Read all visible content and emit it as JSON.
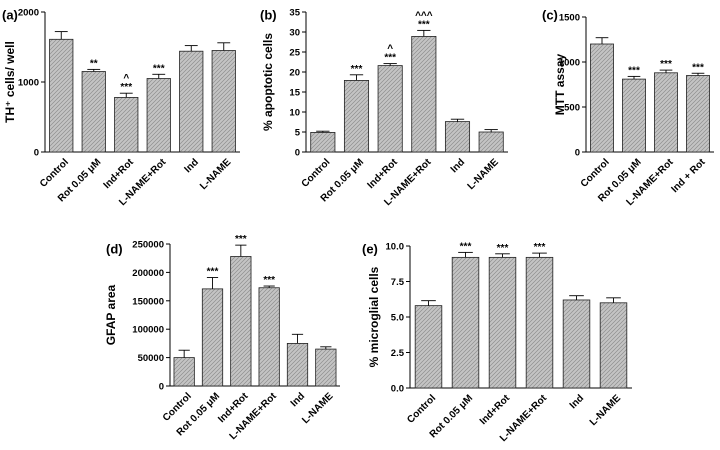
{
  "colors": {
    "bar_fill": "#bdbdbd",
    "bar_stroke": "#222222",
    "axis": "#000000"
  },
  "chart_data": [
    {
      "type": "bar",
      "panel": "(a)",
      "ylabel": "TH⁺ cells/ well",
      "ylim": [
        0,
        2000
      ],
      "yticks": [
        0,
        1000,
        2000
      ],
      "categories": [
        "Control",
        "Rot 0.05 μM",
        "Ind+Rot",
        "L-NAME+Rot",
        "Ind",
        "L-NAME"
      ],
      "values": [
        1610,
        1150,
        780,
        1050,
        1440,
        1450
      ],
      "errors": [
        110,
        30,
        60,
        60,
        80,
        110
      ],
      "significance": [
        "",
        "**",
        "^\n***",
        "***",
        "",
        ""
      ],
      "grid": false
    },
    {
      "type": "bar",
      "panel": "(b)",
      "ylabel": "% apoptotic cells",
      "ylim": [
        0,
        35
      ],
      "yticks": [
        0,
        5,
        10,
        15,
        20,
        25,
        30,
        35
      ],
      "categories": [
        "Control",
        "Rot 0.05 μM",
        "Ind+Rot",
        "L-NAME+Rot",
        "Ind",
        "L-NAME"
      ],
      "values": [
        4.9,
        17.9,
        21.6,
        28.9,
        7.6,
        5.0
      ],
      "errors": [
        0.3,
        1.4,
        0.5,
        1.5,
        0.6,
        0.6
      ],
      "significance": [
        "",
        "***",
        "^\n***",
        "^^^\n***",
        "",
        ""
      ],
      "grid": false
    },
    {
      "type": "bar",
      "panel": "(c)",
      "ylabel": "MTT assay",
      "ylim": [
        0,
        1500
      ],
      "yticks": [
        0,
        500,
        1000,
        1500
      ],
      "categories": [
        "Control",
        "Rot 0.05 μM",
        "L-NAME+Rot",
        "Ind + Rot"
      ],
      "values": [
        1200,
        810,
        880,
        850
      ],
      "errors": [
        70,
        30,
        30,
        25
      ],
      "significance": [
        "",
        "***",
        "***",
        "***"
      ],
      "grid": false
    },
    {
      "type": "bar",
      "panel": "(d)",
      "ylabel": "GFAP area",
      "ylim": [
        0,
        250000
      ],
      "yticks": [
        0,
        50000,
        100000,
        150000,
        200000,
        250000
      ],
      "categories": [
        "Control",
        "Rot 0.05 μM",
        "Ind+Rot",
        "L-NAME+Rot",
        "Ind",
        "L-NAME"
      ],
      "values": [
        50000,
        171000,
        228000,
        173000,
        75000,
        65000
      ],
      "errors": [
        13000,
        20000,
        20000,
        3000,
        16000,
        4000
      ],
      "significance": [
        "",
        "***",
        "***",
        "***",
        "",
        ""
      ],
      "grid": false
    },
    {
      "type": "bar",
      "panel": "(e)",
      "ylabel": "% microglial cells",
      "ylim": [
        0,
        10
      ],
      "yticks": [
        0.0,
        2.5,
        5.0,
        7.5,
        10.0
      ],
      "ytick_labels": [
        "0.0",
        "2.5",
        "5.0",
        "7.5",
        "10.0"
      ],
      "categories": [
        "Control",
        "Rot 0.05 μM",
        "Ind+Rot",
        "L-NAME+Rot",
        "Ind",
        "L-NAME"
      ],
      "values": [
        5.8,
        9.2,
        9.2,
        9.2,
        6.2,
        6.0
      ],
      "errors": [
        0.35,
        0.35,
        0.25,
        0.3,
        0.3,
        0.35
      ],
      "significance": [
        "",
        "***",
        "***",
        "***",
        "",
        ""
      ],
      "grid": false
    }
  ]
}
